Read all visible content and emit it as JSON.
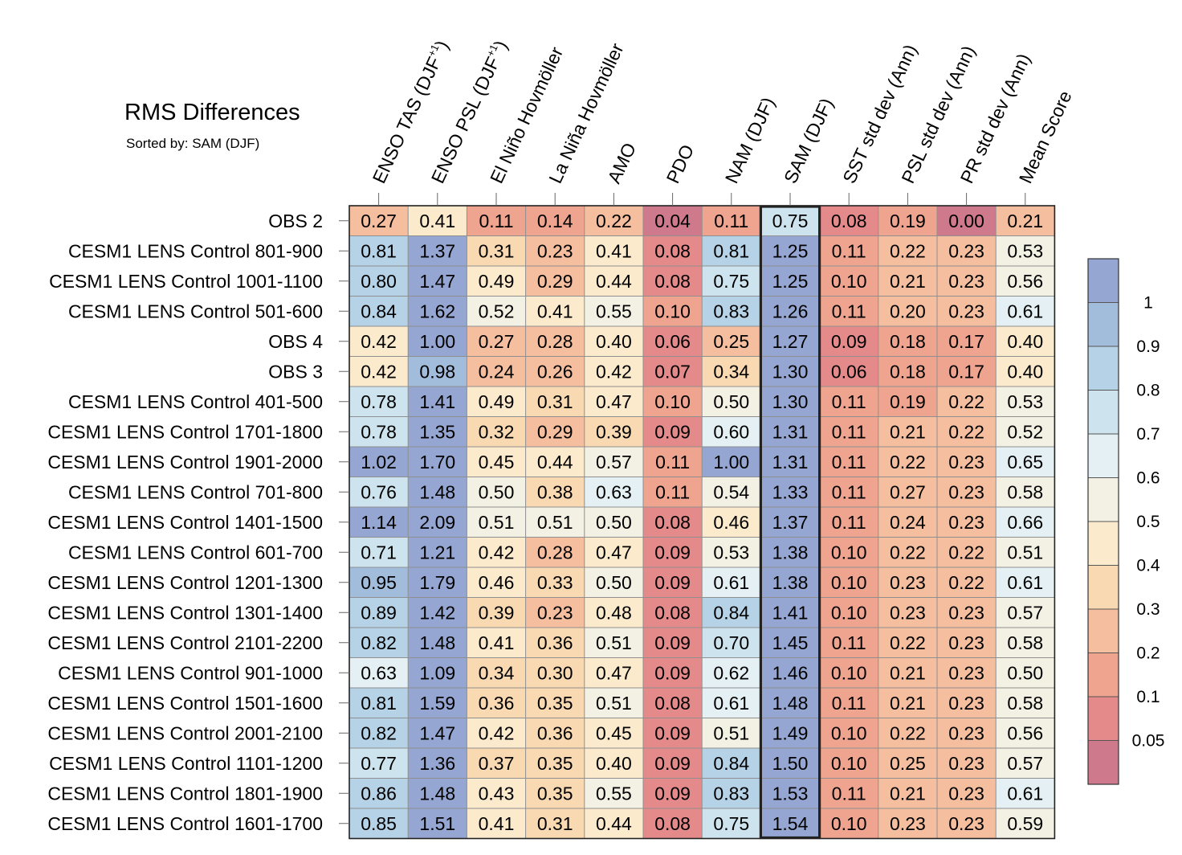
{
  "title": "RMS Differences",
  "subtitle": "Sorted by: SAM (DJF)",
  "chart_data": {
    "type": "heatmap",
    "title": "RMS Differences",
    "subtitle": "Sorted by: SAM (DJF)",
    "columns": [
      {
        "parts": [
          {
            "t": "ENSO TAS (DJF"
          },
          {
            "t": "+1",
            "sup": true
          },
          {
            "t": ")"
          }
        ]
      },
      {
        "parts": [
          {
            "t": "ENSO PSL (DJF"
          },
          {
            "t": "+1",
            "sup": true
          },
          {
            "t": ")"
          }
        ]
      },
      {
        "parts": [
          {
            "t": "El Niño Hovmöller"
          }
        ]
      },
      {
        "parts": [
          {
            "t": "La Niña Hovmöller"
          }
        ]
      },
      {
        "parts": [
          {
            "t": "AMO"
          }
        ]
      },
      {
        "parts": [
          {
            "t": "PDO"
          }
        ]
      },
      {
        "parts": [
          {
            "t": "NAM (DJF)"
          }
        ]
      },
      {
        "parts": [
          {
            "t": "SAM (DJF)"
          }
        ]
      },
      {
        "parts": [
          {
            "t": "SST std dev (Ann)"
          }
        ]
      },
      {
        "parts": [
          {
            "t": "PSL std dev (Ann)"
          }
        ]
      },
      {
        "parts": [
          {
            "t": "PR std dev (Ann)"
          }
        ]
      },
      {
        "parts": [
          {
            "t": "Mean Score"
          }
        ]
      }
    ],
    "highlight_column": 7,
    "rows": [
      {
        "label": "OBS 2",
        "values": [
          "0.27",
          "0.41",
          "0.11",
          "0.14",
          "0.22",
          "0.04",
          "0.11",
          "0.75",
          "0.08",
          "0.19",
          "0.00",
          "0.21"
        ]
      },
      {
        "label": "CESM1 LENS Control 801-900",
        "values": [
          "0.81",
          "1.37",
          "0.31",
          "0.23",
          "0.41",
          "0.08",
          "0.81",
          "1.25",
          "0.11",
          "0.22",
          "0.23",
          "0.53"
        ]
      },
      {
        "label": "CESM1 LENS Control 1001-1100",
        "values": [
          "0.80",
          "1.47",
          "0.49",
          "0.29",
          "0.44",
          "0.08",
          "0.75",
          "1.25",
          "0.10",
          "0.21",
          "0.23",
          "0.56"
        ]
      },
      {
        "label": "CESM1 LENS Control 501-600",
        "values": [
          "0.84",
          "1.62",
          "0.52",
          "0.41",
          "0.55",
          "0.10",
          "0.83",
          "1.26",
          "0.11",
          "0.20",
          "0.23",
          "0.61"
        ]
      },
      {
        "label": "OBS 4",
        "values": [
          "0.42",
          "1.00",
          "0.27",
          "0.28",
          "0.40",
          "0.06",
          "0.25",
          "1.27",
          "0.09",
          "0.18",
          "0.17",
          "0.40"
        ]
      },
      {
        "label": "OBS 3",
        "values": [
          "0.42",
          "0.98",
          "0.24",
          "0.26",
          "0.42",
          "0.07",
          "0.34",
          "1.30",
          "0.06",
          "0.18",
          "0.17",
          "0.40"
        ]
      },
      {
        "label": "CESM1 LENS Control 401-500",
        "values": [
          "0.78",
          "1.41",
          "0.49",
          "0.31",
          "0.47",
          "0.10",
          "0.50",
          "1.30",
          "0.11",
          "0.19",
          "0.22",
          "0.53"
        ]
      },
      {
        "label": "CESM1 LENS Control 1701-1800",
        "values": [
          "0.78",
          "1.35",
          "0.32",
          "0.29",
          "0.39",
          "0.09",
          "0.60",
          "1.31",
          "0.11",
          "0.21",
          "0.22",
          "0.52"
        ]
      },
      {
        "label": "CESM1 LENS Control 1901-2000",
        "values": [
          "1.02",
          "1.70",
          "0.45",
          "0.44",
          "0.57",
          "0.11",
          "1.00",
          "1.31",
          "0.11",
          "0.22",
          "0.23",
          "0.65"
        ]
      },
      {
        "label": "CESM1 LENS Control 701-800",
        "values": [
          "0.76",
          "1.48",
          "0.50",
          "0.38",
          "0.63",
          "0.11",
          "0.54",
          "1.33",
          "0.11",
          "0.27",
          "0.23",
          "0.58"
        ]
      },
      {
        "label": "CESM1 LENS Control 1401-1500",
        "values": [
          "1.14",
          "2.09",
          "0.51",
          "0.51",
          "0.50",
          "0.08",
          "0.46",
          "1.37",
          "0.11",
          "0.24",
          "0.23",
          "0.66"
        ]
      },
      {
        "label": "CESM1 LENS Control 601-700",
        "values": [
          "0.71",
          "1.21",
          "0.42",
          "0.28",
          "0.47",
          "0.09",
          "0.53",
          "1.38",
          "0.10",
          "0.22",
          "0.22",
          "0.51"
        ]
      },
      {
        "label": "CESM1 LENS Control 1201-1300",
        "values": [
          "0.95",
          "1.79",
          "0.46",
          "0.33",
          "0.50",
          "0.09",
          "0.61",
          "1.38",
          "0.10",
          "0.23",
          "0.22",
          "0.61"
        ]
      },
      {
        "label": "CESM1 LENS Control 1301-1400",
        "values": [
          "0.89",
          "1.42",
          "0.39",
          "0.23",
          "0.48",
          "0.08",
          "0.84",
          "1.41",
          "0.10",
          "0.23",
          "0.23",
          "0.57"
        ]
      },
      {
        "label": "CESM1 LENS Control 2101-2200",
        "values": [
          "0.82",
          "1.48",
          "0.41",
          "0.36",
          "0.51",
          "0.09",
          "0.70",
          "1.45",
          "0.11",
          "0.22",
          "0.23",
          "0.58"
        ]
      },
      {
        "label": "CESM1 LENS Control 901-1000",
        "values": [
          "0.63",
          "1.09",
          "0.34",
          "0.30",
          "0.47",
          "0.09",
          "0.62",
          "1.46",
          "0.10",
          "0.21",
          "0.23",
          "0.50"
        ]
      },
      {
        "label": "CESM1 LENS Control 1501-1600",
        "values": [
          "0.81",
          "1.59",
          "0.36",
          "0.35",
          "0.51",
          "0.08",
          "0.61",
          "1.48",
          "0.11",
          "0.21",
          "0.23",
          "0.58"
        ]
      },
      {
        "label": "CESM1 LENS Control 2001-2100",
        "values": [
          "0.82",
          "1.47",
          "0.42",
          "0.36",
          "0.45",
          "0.09",
          "0.51",
          "1.49",
          "0.10",
          "0.22",
          "0.23",
          "0.56"
        ]
      },
      {
        "label": "CESM1 LENS Control 1101-1200",
        "values": [
          "0.77",
          "1.36",
          "0.37",
          "0.35",
          "0.40",
          "0.09",
          "0.84",
          "1.50",
          "0.10",
          "0.25",
          "0.23",
          "0.57"
        ]
      },
      {
        "label": "CESM1 LENS Control 1801-1900",
        "values": [
          "0.86",
          "1.48",
          "0.43",
          "0.35",
          "0.55",
          "0.09",
          "0.83",
          "1.53",
          "0.11",
          "0.21",
          "0.23",
          "0.61"
        ]
      },
      {
        "label": "CESM1 LENS Control 1601-1700",
        "values": [
          "0.85",
          "1.51",
          "0.41",
          "0.31",
          "0.44",
          "0.08",
          "0.75",
          "1.54",
          "0.10",
          "0.23",
          "0.23",
          "0.59"
        ]
      }
    ],
    "colorbar": {
      "levels": [
        0.05,
        0.1,
        0.2,
        0.3,
        0.4,
        0.5,
        0.6,
        0.7,
        0.8,
        0.9,
        1
      ],
      "tick_labels": [
        "0.05",
        "0.1",
        "0.2",
        "0.3",
        "0.4",
        "0.5",
        "0.6",
        "0.7",
        "0.8",
        "0.9",
        "1"
      ],
      "colors": [
        "#cf7a8c",
        "#e48a8a",
        "#efa48f",
        "#f5be9f",
        "#f9d9b2",
        "#fbeacc",
        "#f3f1e3",
        "#e4f0f3",
        "#cde4ef",
        "#b6d2e6",
        "#a2bcdb",
        "#94a6d1"
      ],
      "orientation": "vertical",
      "placement": "right"
    }
  }
}
